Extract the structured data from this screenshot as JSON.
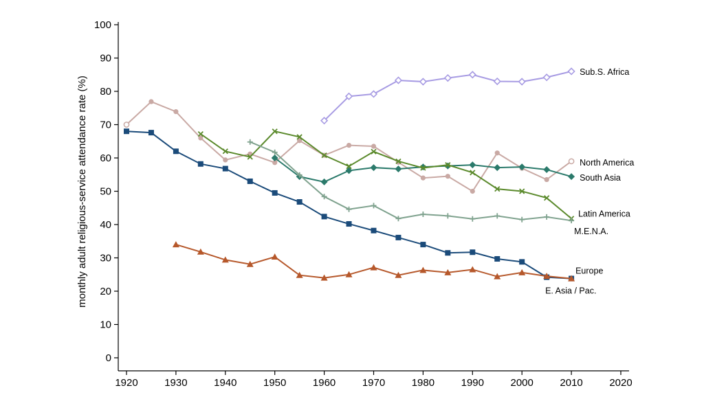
{
  "chart_data": {
    "type": "line",
    "title": "",
    "xlabel": "",
    "ylabel": "monthly adult religious-service attendance rate (%)",
    "xlim": [
      1920,
      2020
    ],
    "ylim": [
      0,
      100
    ],
    "xticks": [
      1920,
      1930,
      1940,
      1950,
      1960,
      1970,
      1980,
      1990,
      2000,
      2010,
      2020
    ],
    "yticks": [
      0,
      10,
      20,
      30,
      40,
      50,
      60,
      70,
      80,
      90,
      100
    ],
    "grid": false,
    "legend": "inline labels at line ends (right)",
    "series": [
      {
        "name": "Sub.S. Africa",
        "color": "#a79be3",
        "marker": "hollow-diamond",
        "x": [
          1960,
          1965,
          1970,
          1975,
          1980,
          1985,
          1990,
          1995,
          2000,
          2005,
          2010
        ],
        "values": [
          71.2,
          78.5,
          79.2,
          83.3,
          82.9,
          84.0,
          85.0,
          83.0,
          82.9,
          84.2,
          86.0
        ]
      },
      {
        "name": "North America",
        "color": "#c9a9a4",
        "marker": "circle",
        "x": [
          1920,
          1925,
          1930,
          1935,
          1940,
          1945,
          1950,
          1955,
          1960,
          1965,
          1970,
          1975,
          1980,
          1985,
          1990,
          1995,
          2000,
          2005,
          2010
        ],
        "values": [
          70.0,
          76.9,
          73.9,
          66.0,
          59.4,
          61.2,
          58.6,
          65.2,
          60.8,
          63.8,
          63.5,
          58.7,
          54.0,
          54.5,
          50.0,
          61.5,
          56.9,
          53.5,
          59.0
        ]
      },
      {
        "name": "South Asia",
        "color": "#2b7a6b",
        "marker": "diamond",
        "x": [
          1950,
          1955,
          1960,
          1965,
          1970,
          1975,
          1980,
          1985,
          1990,
          1995,
          2000,
          2005,
          2010
        ],
        "values": [
          60.0,
          54.4,
          52.8,
          56.2,
          57.1,
          56.7,
          57.3,
          57.6,
          57.9,
          57.1,
          57.3,
          56.5,
          54.4
        ]
      },
      {
        "name": "Latin America",
        "color": "#5b8a2c",
        "marker": "x",
        "x": [
          1935,
          1940,
          1945,
          1950,
          1955,
          1960,
          1965,
          1970,
          1975,
          1980,
          1985,
          1990,
          1995,
          2000,
          2005,
          2010
        ],
        "values": [
          67.2,
          62.0,
          60.3,
          68.0,
          66.3,
          60.8,
          57.5,
          61.9,
          59.0,
          57.0,
          57.9,
          55.6,
          50.7,
          50.0,
          48.0,
          41.8
        ]
      },
      {
        "name": "M.E.N.A.",
        "color": "#7fa28e",
        "marker": "plus",
        "x": [
          1945,
          1950,
          1955,
          1960,
          1965,
          1970,
          1975,
          1980,
          1985,
          1990,
          1995,
          2000,
          2005,
          2010
        ],
        "values": [
          64.8,
          61.7,
          54.9,
          48.4,
          44.6,
          45.7,
          41.8,
          43.1,
          42.6,
          41.7,
          42.6,
          41.5,
          42.3,
          41.2
        ]
      },
      {
        "name": "Europe",
        "color": "#1b4b7a",
        "marker": "square",
        "x": [
          1920,
          1925,
          1930,
          1935,
          1940,
          1945,
          1950,
          1955,
          1960,
          1965,
          1970,
          1975,
          1980,
          1985,
          1990,
          1995,
          2000,
          2005,
          2010
        ],
        "values": [
          68.0,
          67.6,
          62.0,
          58.2,
          56.8,
          53.0,
          49.5,
          46.8,
          42.4,
          40.2,
          38.2,
          36.1,
          34.0,
          31.5,
          31.7,
          29.7,
          28.8,
          24.2,
          23.8
        ]
      },
      {
        "name": "E. Asia / Pac.",
        "color": "#b6582b",
        "marker": "triangle",
        "x": [
          1930,
          1935,
          1940,
          1945,
          1950,
          1955,
          1960,
          1965,
          1970,
          1975,
          1980,
          1985,
          1990,
          1995,
          2000,
          2005,
          2010
        ],
        "values": [
          34.0,
          31.8,
          29.4,
          28.1,
          30.3,
          24.8,
          24.0,
          25.0,
          27.1,
          24.8,
          26.3,
          25.6,
          26.5,
          24.4,
          25.6,
          24.5,
          23.8
        ]
      }
    ]
  }
}
